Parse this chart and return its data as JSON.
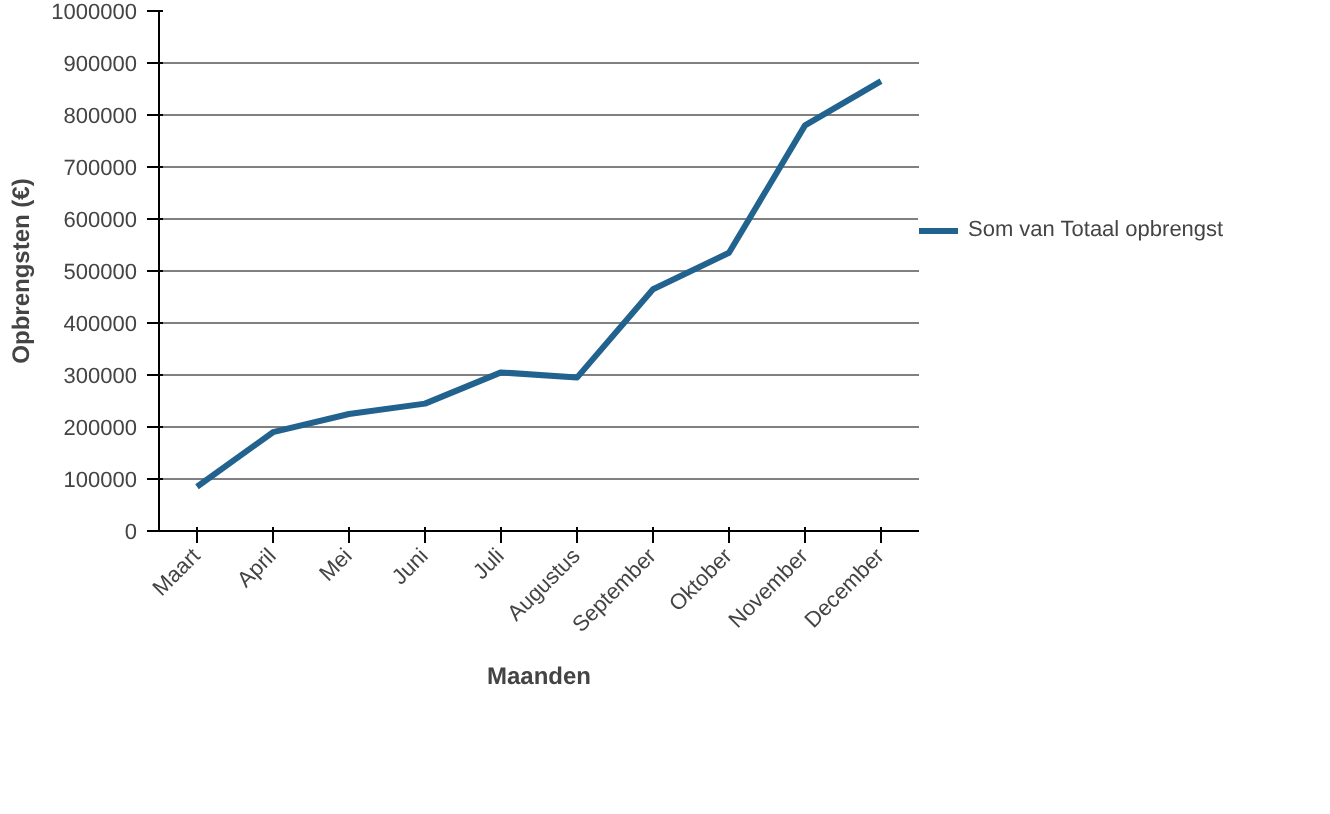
{
  "chart_data": {
    "type": "line",
    "xlabel": "Maanden",
    "ylabel": "Opbrengsten (€)",
    "categories": [
      "Maart",
      "April",
      "Mei",
      "Juni",
      "Juli",
      "Augustus",
      "September",
      "Oktober",
      "November",
      "December"
    ],
    "series": [
      {
        "name": "Som van Totaal opbrengst",
        "color": "#21628e",
        "values": [
          85000,
          190000,
          225000,
          245000,
          305000,
          295000,
          465000,
          535000,
          780000,
          865000
        ]
      }
    ],
    "ylim": [
      0,
      1000000
    ],
    "yticks": [
      0,
      100000,
      200000,
      300000,
      400000,
      500000,
      600000,
      700000,
      800000,
      900000,
      1000000
    ],
    "grid": "y",
    "legend": "right",
    "marker": "none",
    "line_style": "solid"
  }
}
